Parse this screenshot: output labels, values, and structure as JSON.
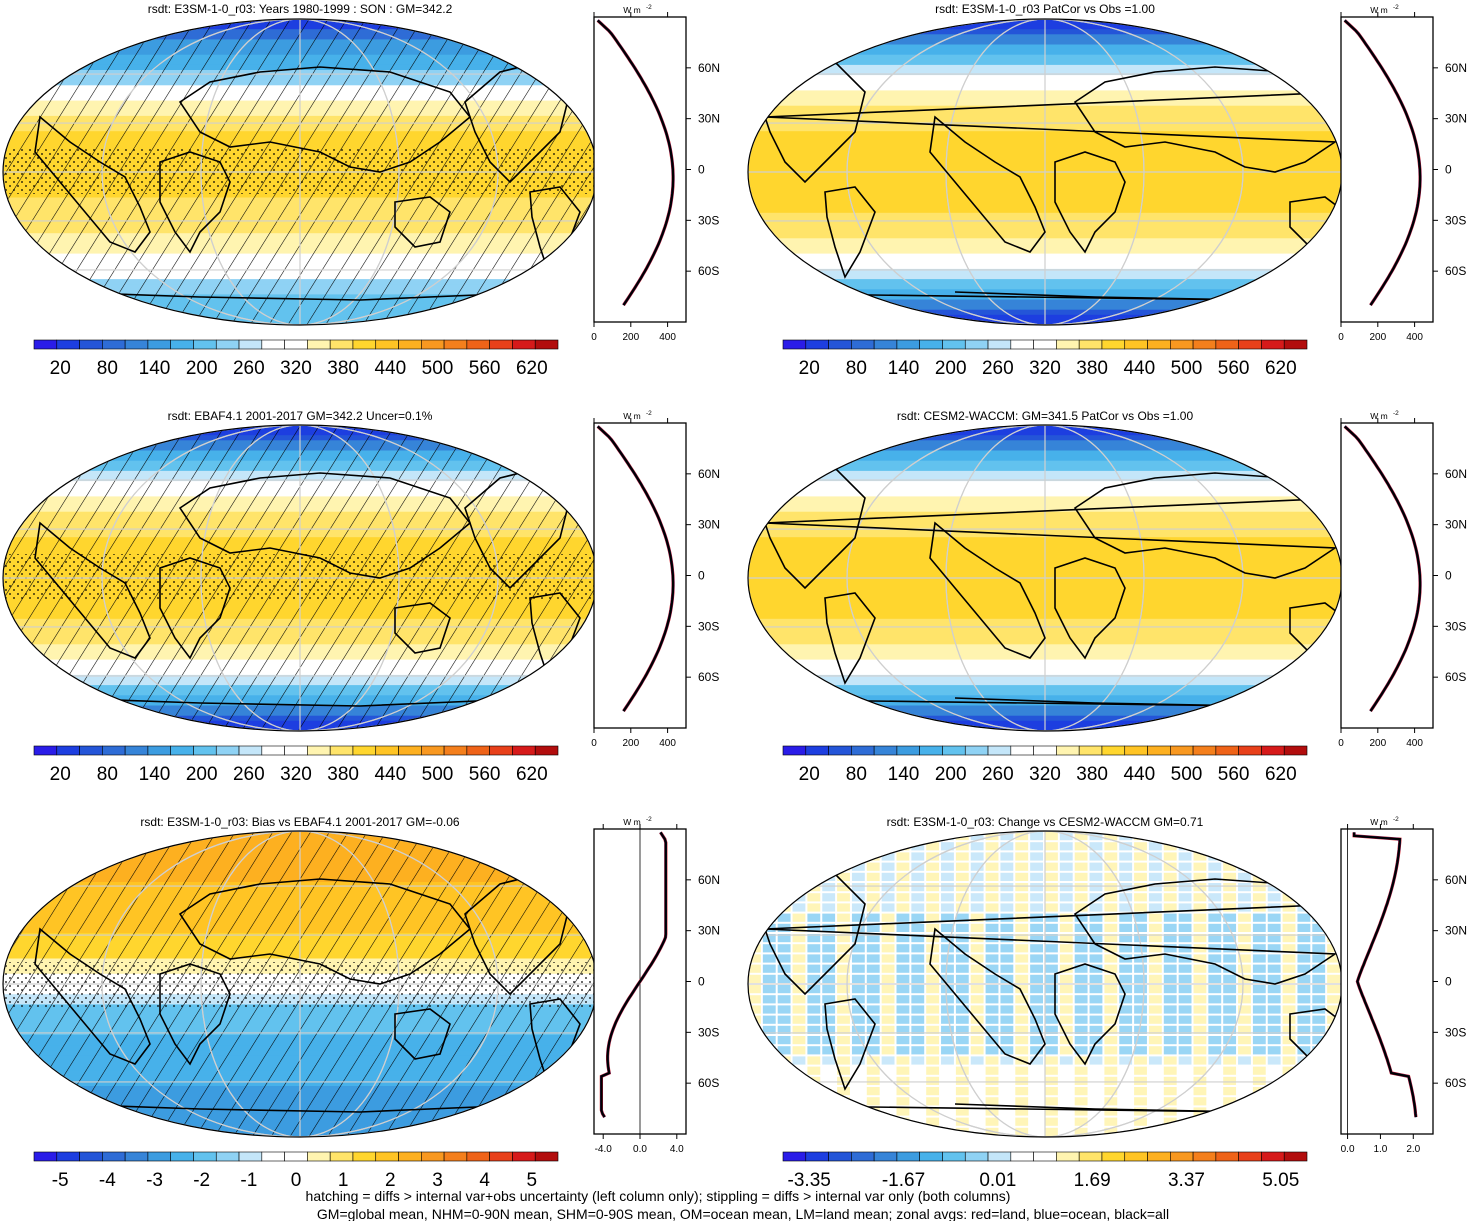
{
  "chart_data": [
    {
      "type": "heatmap",
      "title": "rsdt: E3SM-1-0_r03: Years 1980-1999 : SON : GM=342.2",
      "colorbar_labels": [
        "20",
        "80",
        "140",
        "200",
        "260",
        "320",
        "380",
        "440",
        "500",
        "560",
        "620"
      ],
      "field": "model_mean",
      "hatching": true,
      "stippling": true,
      "zonal": {
        "xticks": [
          "0",
          "200",
          "400"
        ],
        "xlim": [
          0,
          500
        ],
        "units": "W m-2",
        "lat_labels": [
          "60N",
          "30N",
          "0",
          "30S",
          "60S"
        ],
        "profile": "insolation"
      }
    },
    {
      "type": "heatmap",
      "title": "rsdt: E3SM-1-0_r03 PatCor vs Obs =1.00",
      "colorbar_labels": [
        "20",
        "80",
        "140",
        "200",
        "260",
        "320",
        "380",
        "440",
        "500",
        "560",
        "620"
      ],
      "field": "model_mean",
      "hatching": false,
      "stippling": false,
      "zonal": {
        "xticks": [
          "0",
          "200",
          "400"
        ],
        "xlim": [
          0,
          500
        ],
        "units": "W m-2",
        "lat_labels": [
          "60N",
          "30N",
          "0",
          "30S",
          "60S"
        ],
        "profile": "insolation"
      }
    },
    {
      "type": "heatmap",
      "title": "rsdt: EBAF4.1 2001-2017 GM=342.2 Uncer=0.1%",
      "colorbar_labels": [
        "20",
        "80",
        "140",
        "200",
        "260",
        "320",
        "380",
        "440",
        "500",
        "560",
        "620"
      ],
      "field": "obs_mean",
      "hatching": true,
      "stippling": true,
      "zonal": {
        "xticks": [
          "0",
          "200",
          "400"
        ],
        "xlim": [
          0,
          500
        ],
        "units": "W m-2",
        "lat_labels": [
          "60N",
          "30N",
          "0",
          "30S",
          "60S"
        ],
        "profile": "insolation"
      }
    },
    {
      "type": "heatmap",
      "title": "rsdt: CESM2-WACCM: GM=341.5 PatCor vs Obs =1.00",
      "colorbar_labels": [
        "20",
        "80",
        "140",
        "200",
        "260",
        "320",
        "380",
        "440",
        "500",
        "560",
        "620"
      ],
      "field": "model_mean",
      "hatching": false,
      "stippling": false,
      "zonal": {
        "xticks": [
          "0",
          "200",
          "400"
        ],
        "xlim": [
          0,
          500
        ],
        "units": "W m-2",
        "lat_labels": [
          "60N",
          "30N",
          "0",
          "30S",
          "60S"
        ],
        "profile": "insolation"
      }
    },
    {
      "type": "heatmap",
      "title": "rsdt: E3SM-1-0_r03: Bias vs EBAF4.1 2001-2017  GM=-0.06",
      "colorbar_labels": [
        "-5",
        "-4",
        "-3",
        "-2",
        "-1",
        "0",
        "1",
        "2",
        "3",
        "4",
        "5"
      ],
      "field": "bias",
      "hatching": true,
      "stippling": true,
      "zonal": {
        "xticks": [
          "-4.0",
          "0.0",
          "4.0"
        ],
        "xlim": [
          -5,
          5
        ],
        "units": "W m-2",
        "lat_labels": [
          "60N",
          "30N",
          "0",
          "30S",
          "60S"
        ],
        "profile": "bias"
      }
    },
    {
      "type": "heatmap",
      "title": "rsdt: E3SM-1-0_r03: Change vs CESM2-WACCM GM=0.71",
      "colorbar_labels": [
        "-3.35",
        "-1.67",
        "0.01",
        "1.69",
        "3.37",
        "5.05"
      ],
      "field": "change",
      "hatching": false,
      "stippling": false,
      "zonal": {
        "xticks": [
          "0.0",
          "1.0",
          "2.0"
        ],
        "xlim": [
          -0.2,
          2.6
        ],
        "units": "W m-2",
        "lat_labels": [
          "60N",
          "30N",
          "0",
          "30S",
          "60S"
        ],
        "profile": "change"
      }
    }
  ],
  "palette": [
    "#2a1ce8",
    "#1d3ee0",
    "#2455d8",
    "#2e6cd6",
    "#3684d8",
    "#3c9ce0",
    "#47b1ea",
    "#62c2ee",
    "#8fd2f4",
    "#c4e6f9",
    "#ffffff",
    "#ffffff",
    "#fff4b0",
    "#ffe46a",
    "#ffd62e",
    "#ffc424",
    "#fdb020",
    "#f89820",
    "#f47f1c",
    "#ef6318",
    "#e8401a",
    "#d61a1a",
    "#b20d0d"
  ],
  "wm2_label": "W m",
  "wm2_exp": "-2",
  "footer": {
    "line1": "hatching = diffs > internal var+obs uncertainty (left column only); stippling = diffs > internal var only (both columns)",
    "line2": "GM=global mean, NHM=0-90N mean, SHM=0-90S mean, OM=ocean mean, LM=land mean; zonal avgs: red=land, blue=ocean, black=all"
  }
}
